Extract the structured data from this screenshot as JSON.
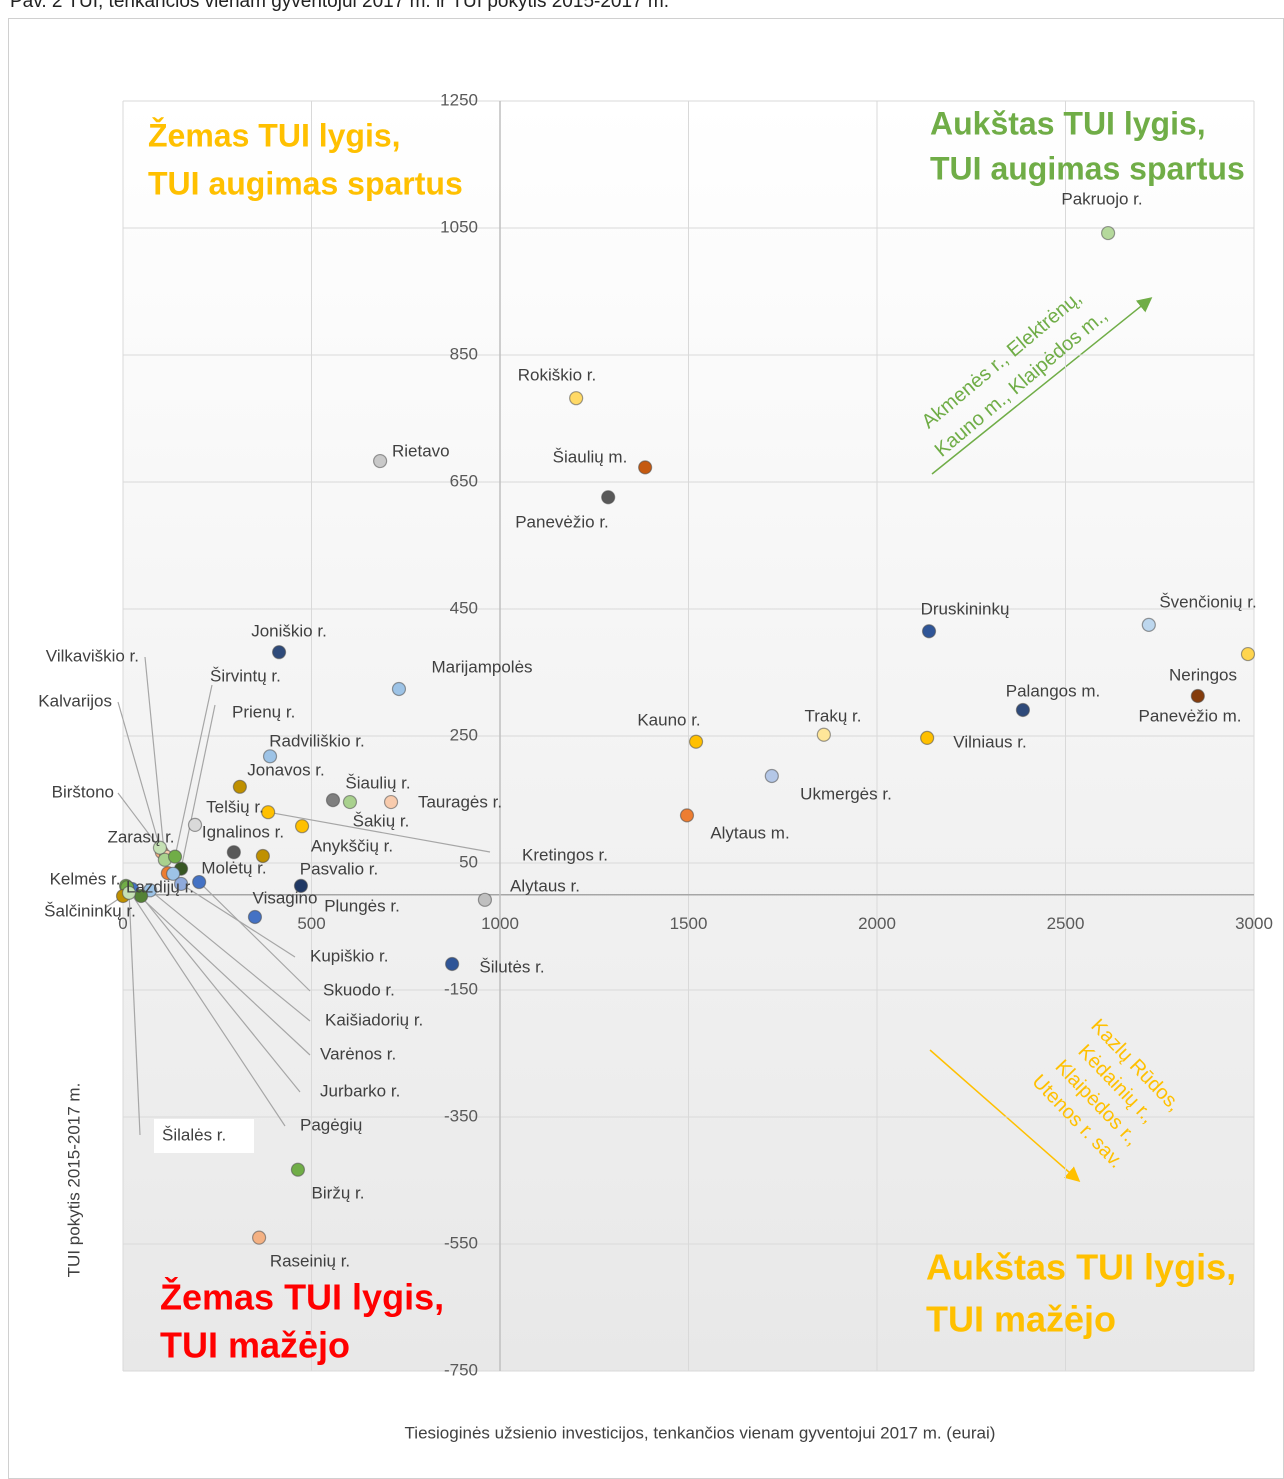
{
  "chart_data": {
    "type": "scatter",
    "title": "Pav. 2 TUI, tenkančios vienam gyventojui 2017 m. ir TUI pokytis 2015-2017 m.",
    "x_label": "Tiesioginės užsienio investicijos, tenkančios vienam gyventojui 2017 m. (eurai)",
    "y_label": "TUI pokytis 2015-2017 m.",
    "xlim": [
      0,
      3000
    ],
    "ylim": [
      -750,
      1250
    ],
    "xticks": [
      0,
      500,
      1000,
      1500,
      2000,
      2500,
      3000
    ],
    "yticks": [
      1250,
      1050,
      850,
      650,
      450,
      250,
      50,
      -150,
      -350,
      -550,
      -750
    ],
    "grid": true,
    "labels": [
      "Pakruojo r.",
      "Rokiškio r.",
      "Rietavo",
      "Šiaulių m.",
      "Panevėžio r.",
      "Druskininkų",
      "Švenčionių r.",
      "Neringos",
      "Panevėžio m.",
      "Joniškio r.",
      "Marijampolės",
      "Palangos m.",
      "Kauno r.",
      "Trakų r.",
      "Vilniaus r.",
      "Radviliškio r.",
      "Ukmergės r.",
      "Jonavos r.",
      "Šiaulių r.",
      "Šakių r.",
      "Tauragės r.",
      "Kretingos r.",
      "Telšių r.",
      "Alytaus m.",
      "Anykščių r.",
      "Ignalinos r.",
      "Pasvalio r.",
      "Plungės r.",
      "Alytaus r.",
      "Visagino",
      "Šilutės r.",
      "Biržų r.",
      "Raseinių r.",
      "Zarasų r.",
      "Birštono",
      "Kalvarijos",
      "Vilkaviškio r.",
      "Širvintų r.",
      "Prienų r.",
      "Molėtų r.",
      "Lazdijų r.",
      "Kupiškio r.",
      "Skuodo r.",
      "Kaišiadorių r.",
      "Varėnos r.",
      "Jurbarko r.",
      "Pagėgių",
      "Kelmės r.",
      "Šalčininkų r.",
      "Šilalės r."
    ],
    "x": [
      2613,
      1202,
      682,
      1385,
      1287,
      2138,
      2721,
      2984,
      2851,
      414,
      732,
      2387,
      1520,
      1859,
      2133,
      390,
      1721,
      310,
      557,
      602,
      711,
      385,
      191,
      1496,
      475,
      294,
      371,
      472,
      960,
      350,
      873,
      464,
      361,
      103,
      114,
      98,
      111,
      138,
      154,
      119,
      133,
      154,
      202,
      72,
      24,
      48,
      8,
      11,
      0,
      16
    ],
    "values": [
      1042,
      782,
      683,
      673,
      626,
      415,
      425,
      379,
      313,
      382,
      324,
      291,
      241,
      252,
      247,
      218,
      187,
      170,
      149,
      146,
      146,
      130,
      110,
      125,
      108,
      67,
      61,
      14,
      -8,
      -35,
      -109,
      -433,
      -540,
      67,
      60,
      74,
      55,
      60,
      41,
      34,
      33,
      17,
      20,
      7,
      9,
      -2,
      14,
      12,
      -2,
      3
    ],
    "colors": [
      "#b5d99c",
      "#ffd966",
      "#c9c9c9",
      "#c55a11",
      "#595959",
      "#2f5597",
      "#bdd7ee",
      "#ffd54f",
      "#843c0c",
      "#2e4a7a",
      "#9dc3e6",
      "#2e4a7a",
      "#ffc000",
      "#ffe699",
      "#ffc000",
      "#9dc3e6",
      "#b4c7e7",
      "#bf9000",
      "#7f7f7f",
      "#a9d18e",
      "#f8cbad",
      "#ffc000",
      "#d9d9d9",
      "#ed7d31",
      "#ffc000",
      "#595959",
      "#bf9000",
      "#203864",
      "#bfbfbf",
      "#4472c4",
      "#2f5597",
      "#70ad47",
      "#f4b183",
      "#f4b183",
      "#f8cbad",
      "#c5e0b4",
      "#a9d18e",
      "#70ad47",
      "#375623",
      "#ed7d31",
      "#9dc3e6",
      "#8faadc",
      "#4472c4",
      "#9dc3e6",
      "#4472c4",
      "#548235",
      "#70ad47",
      "#70ad47",
      "#bf9000",
      "#c5e0b4"
    ],
    "annotations": [
      {
        "lines": [
          "Žemas TUI lygis,",
          "TUI augimas spartus"
        ],
        "color": "#ffc000"
      },
      {
        "lines": [
          "Aukštas TUI lygis,",
          "TUI augimas spartus"
        ],
        "color": "#70ad47"
      },
      {
        "lines": [
          "Žemas TUI lygis,",
          "TUI mažėjo"
        ],
        "color": "#ff0000"
      },
      {
        "lines": [
          "Aukštas TUI lygis,",
          "TUI mažėjo"
        ],
        "color": "#ffc000"
      },
      {
        "lines": [
          "Akmenės r., Elektrėnų,",
          "Kauno m., Klaipėdos m.,"
        ],
        "color": "#70ad47"
      },
      {
        "lines": [
          "Kazlų Rūdos,",
          "Kėdainių r.,",
          "Klaipėdos r.,",
          "Utenos r. sav."
        ],
        "color": "#ffc000"
      }
    ]
  }
}
